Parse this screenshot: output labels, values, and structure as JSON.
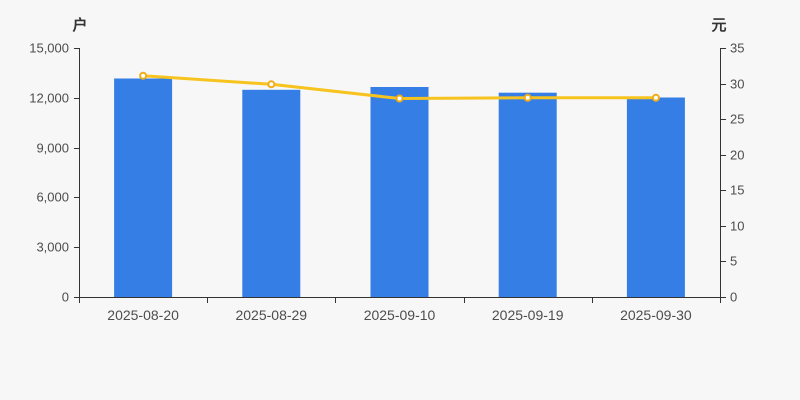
{
  "page": {
    "background": "#f7f7f7"
  },
  "chart_data": {
    "type": "bar",
    "combo": "bar+line dual axis",
    "title": "",
    "legend_position": "none",
    "grid": false,
    "categories": [
      "2025-08-20",
      "2025-08-29",
      "2025-09-10",
      "2025-09-19",
      "2025-09-30"
    ],
    "series": [
      {
        "name": "bar-series",
        "type": "bar",
        "yaxis": "left",
        "color": "#357ee5",
        "values": [
          13160,
          12480,
          12650,
          12310,
          12020
        ]
      },
      {
        "name": "line-series",
        "type": "line",
        "yaxis": "right",
        "color": "#f7c31f",
        "marker_stroke": "#f0ad17",
        "marker_fill": "#ffffff",
        "values": [
          31.1,
          29.9,
          27.9,
          28.0,
          28.0
        ]
      }
    ],
    "left_axis": {
      "unit_label": "户",
      "min": 0,
      "max": 15000,
      "step": 3000,
      "tick_labels": [
        "0",
        "3,000",
        "6,000",
        "9,000",
        "12,000",
        "15,000"
      ]
    },
    "right_axis": {
      "unit_label": "元",
      "min": 0,
      "max": 35,
      "step": 5,
      "tick_labels": [
        "0",
        "5",
        "10",
        "15",
        "20",
        "25",
        "30",
        "35"
      ]
    },
    "axis_color": "#333333",
    "tick_text_color": "#4d4d4d"
  }
}
